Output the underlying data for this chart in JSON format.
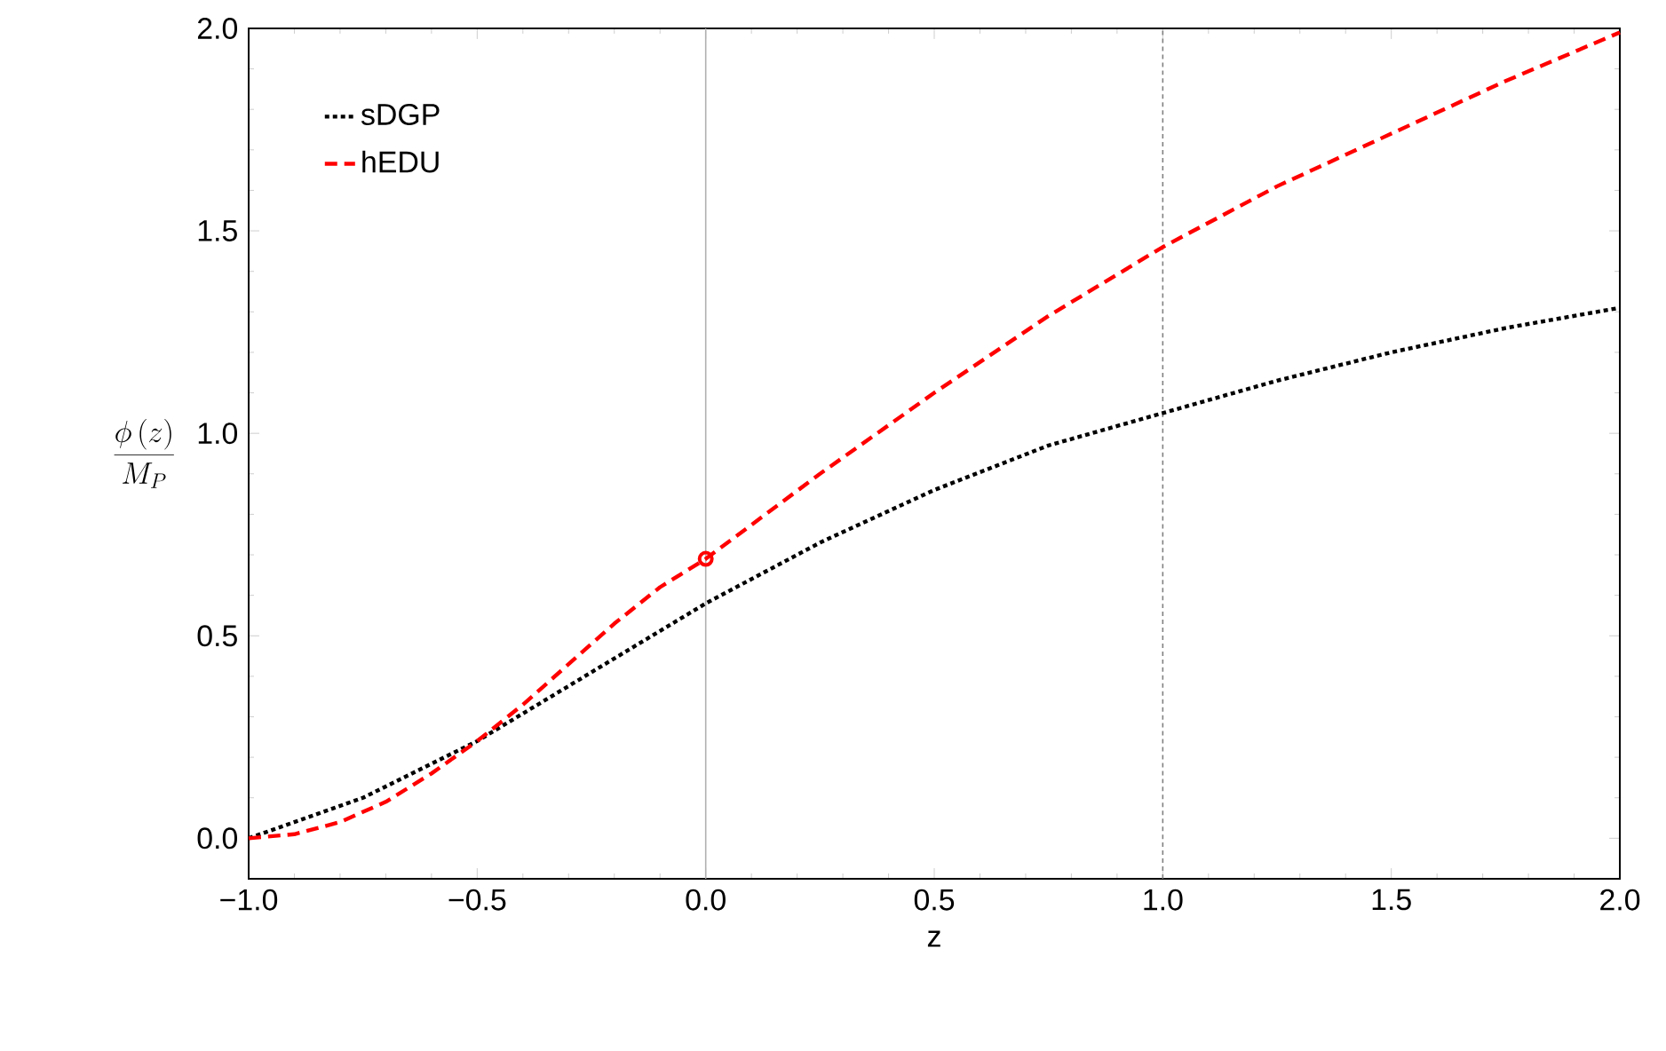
{
  "chart_data": {
    "type": "line",
    "xlabel": "z",
    "ylabel": "\\frac{\\phi\\,(z)}{M_P}",
    "xlim": [
      -1,
      2
    ],
    "ylim": [
      -0.1,
      2.0
    ],
    "xticks": [
      {
        "value": -1,
        "label": "−1.0"
      },
      {
        "value": -0.5,
        "label": "−0.5"
      },
      {
        "value": 0,
        "label": "0.0"
      },
      {
        "value": 0.5,
        "label": "0.5"
      },
      {
        "value": 1,
        "label": "1.0"
      },
      {
        "value": 1.5,
        "label": "1.5"
      },
      {
        "value": 2,
        "label": "2.0"
      }
    ],
    "yticks": [
      {
        "value": 0,
        "label": "0.0"
      },
      0.5,
      {
        "value": 1,
        "label": "1.0"
      },
      1.5,
      {
        "value": 2,
        "label": "2.0"
      }
    ],
    "legend": "top left",
    "grid": false,
    "ref_lines": [
      {
        "axis": "x",
        "value": 0,
        "color": "#b0b0b0",
        "line_style": "solid"
      },
      {
        "axis": "x",
        "value": 1,
        "color": "#808080",
        "line_style": "dotted"
      }
    ],
    "series": [
      {
        "name": "sDGP",
        "color": "#000000",
        "line_style": "dotted",
        "marker": "none",
        "x": [
          -1,
          -0.75,
          -0.5,
          -0.25,
          0,
          0.25,
          0.5,
          0.75,
          1,
          1.25,
          1.5,
          1.75,
          2
        ],
        "values": [
          0,
          0.1,
          0.24,
          0.41,
          0.58,
          0.73,
          0.86,
          0.97,
          1.05,
          1.13,
          1.2,
          1.26,
          1.31
        ]
      },
      {
        "name": "hEDU",
        "color": "#ff0000",
        "line_style": "dashed",
        "marker": "none",
        "x": [
          -1,
          -0.9,
          -0.8,
          -0.7,
          -0.6,
          -0.5,
          -0.4,
          -0.3,
          -0.2,
          -0.1,
          0,
          0.25,
          0.5,
          0.75,
          1,
          1.25,
          1.5,
          1.75,
          2
        ],
        "values": [
          0,
          0.01,
          0.04,
          0.09,
          0.16,
          0.24,
          0.33,
          0.43,
          0.53,
          0.62,
          0.69,
          0.9,
          1.1,
          1.29,
          1.46,
          1.61,
          1.74,
          1.87,
          1.99
        ]
      },
      {
        "type": "scatter",
        "color": "#ff0000",
        "marker": "circle",
        "x": [
          0
        ],
        "values": [
          0.69
        ]
      }
    ]
  }
}
